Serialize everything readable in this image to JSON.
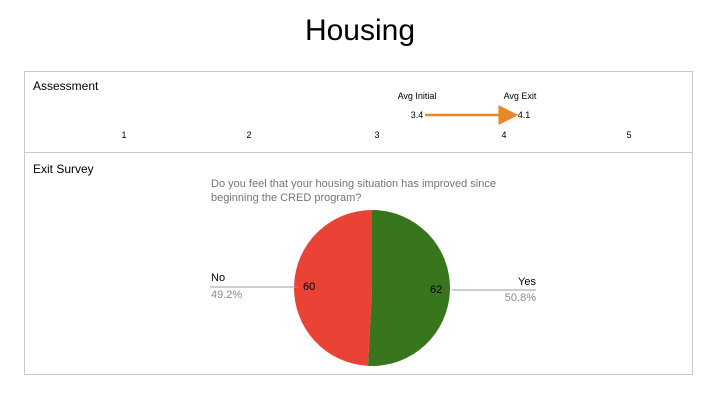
{
  "title": "Housing",
  "assessment": {
    "label": "Assessment",
    "scale_ticks": [
      "1",
      "2",
      "3",
      "4",
      "5"
    ],
    "initial": {
      "label": "Avg Initial",
      "value": 3.4,
      "value_text": "3.4"
    },
    "exit": {
      "label": "Avg Exit",
      "value": 4.1,
      "value_text": "4.1"
    },
    "arrow_color": "#e8862a"
  },
  "exit_survey": {
    "label": "Exit Survey",
    "question": "Do you feel that your housing situation has improved since beginning the CRED program?"
  },
  "chart_data": {
    "type": "pie",
    "title": "Do you feel that your housing situation has improved since beginning the CRED program?",
    "slices": [
      {
        "label": "Yes",
        "value": 62,
        "value_text": "62",
        "percent": "50.8%",
        "color": "#38761d"
      },
      {
        "label": "No",
        "value": 60,
        "value_text": "60",
        "percent": "49.2%",
        "color": "#ea4335"
      }
    ]
  }
}
